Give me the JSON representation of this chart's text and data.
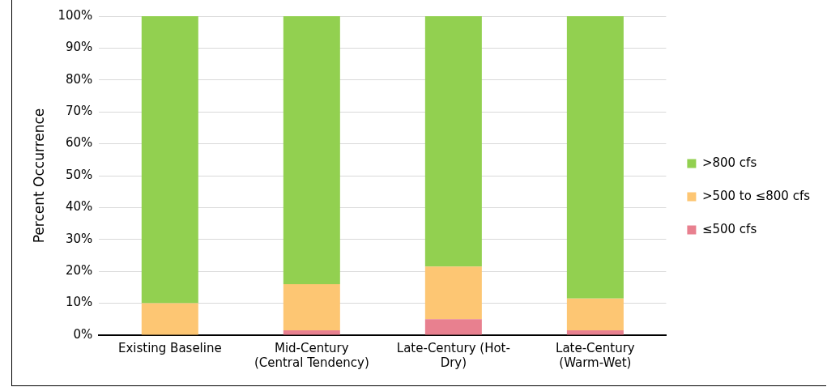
{
  "chart_data": {
    "type": "bar",
    "stacked": true,
    "ylabel": "Percent Occurrence",
    "categories": [
      "Existing Baseline",
      "Mid-Century (Central Tendency)",
      "Late-Century (Hot-Dry)",
      "Late-Century (Warm-Wet)"
    ],
    "series": [
      {
        "name": "≤500 cfs",
        "color": "#e8808f",
        "values": [
          0,
          1.5,
          5,
          1.5
        ]
      },
      {
        "name": ">500 to ≤800 cfs",
        "color": "#fdc673",
        "values": [
          10,
          14.5,
          16.5,
          10
        ]
      },
      {
        "name": ">800 cfs",
        "color": "#92d050",
        "values": [
          90,
          84,
          78.5,
          88.5
        ]
      }
    ],
    "ylim": [
      0,
      100
    ],
    "yticks": [
      {
        "value": 0,
        "label": "0%"
      },
      {
        "value": 10,
        "label": "10%"
      },
      {
        "value": 20,
        "label": "20%"
      },
      {
        "value": 30,
        "label": "30%"
      },
      {
        "value": 40,
        "label": "40%"
      },
      {
        "value": 50,
        "label": "50%"
      },
      {
        "value": 60,
        "label": "60%"
      },
      {
        "value": 70,
        "label": "70%"
      },
      {
        "value": 80,
        "label": "80%"
      },
      {
        "value": 90,
        "label": "90%"
      },
      {
        "value": 100,
        "label": "100%"
      }
    ],
    "grid": "y",
    "legend": "right"
  }
}
